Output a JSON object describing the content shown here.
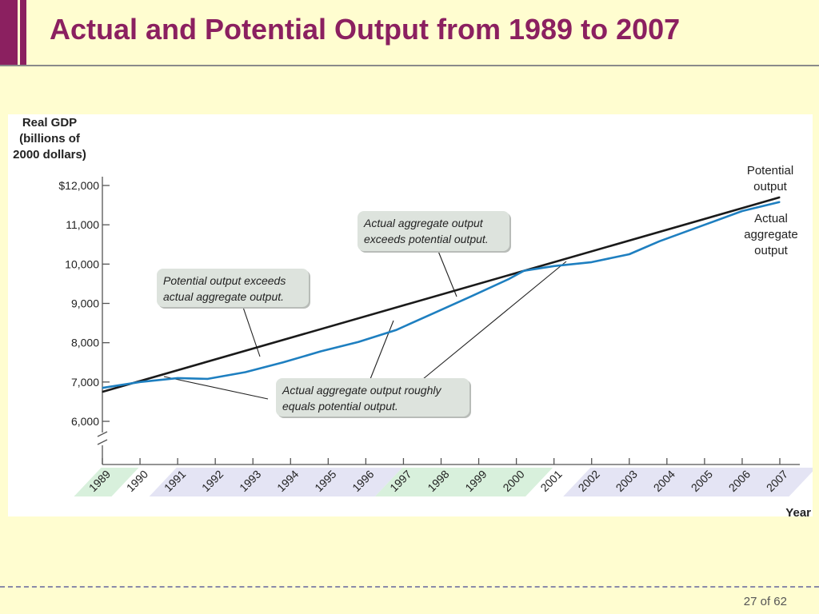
{
  "slide": {
    "title": "Actual and Potential Output from 1989 to 2007",
    "page": "27 of 62"
  },
  "chart_data": {
    "type": "line",
    "title": "",
    "ylabel": [
      "Real GDP",
      "(billions of",
      "2000 dollars)"
    ],
    "xlabel": "Year",
    "ylim": [
      6000,
      12000
    ],
    "y_ticks": [
      "6,000",
      "7,000",
      "8,000",
      "9,000",
      "10,000",
      "11,000",
      "$12,000"
    ],
    "y_tick_values": [
      6000,
      7000,
      8000,
      9000,
      10000,
      11000,
      12000
    ],
    "y_axis_break": true,
    "categories": [
      "1989",
      "1990",
      "1991",
      "1992",
      "1993",
      "1994",
      "1995",
      "1996",
      "1997",
      "1998",
      "1999",
      "2000",
      "2001",
      "2002",
      "2003",
      "2004",
      "2005",
      "2006",
      "2007"
    ],
    "series": [
      {
        "name": "Potential output",
        "color": "#1a1a1a",
        "x": [
          1989,
          2007
        ],
        "values": [
          6750,
          11700
        ]
      },
      {
        "name": "Actual aggregate output",
        "color": "#1e7fc0",
        "x": [
          1989,
          1990,
          1991,
          1991.8,
          1992.8,
          1993.8,
          1994.8,
          1995.8,
          1996.8,
          1997.8,
          1998.8,
          1999.8,
          2000.2,
          2001,
          2002,
          2003,
          2003.8,
          2005,
          2006,
          2007
        ],
        "values": [
          6850,
          7000,
          7100,
          7080,
          7250,
          7500,
          7780,
          8020,
          8320,
          8750,
          9180,
          9620,
          9830,
          9950,
          10050,
          10250,
          10580,
          11000,
          11350,
          11580
        ]
      }
    ],
    "series_labels": {
      "potential": [
        "Potential",
        "output"
      ],
      "actual": [
        "Actual",
        "aggregate",
        "output"
      ]
    },
    "year_bands": [
      {
        "from": "1989",
        "to": "1989",
        "color": "#d8f0dc"
      },
      {
        "from": "1990",
        "to": "1990",
        "color": "#ffffff"
      },
      {
        "from": "1991",
        "to": "1996",
        "color": "#e4e4f4"
      },
      {
        "from": "1997",
        "to": "2000",
        "color": "#d8f0dc"
      },
      {
        "from": "2001",
        "to": "2001",
        "color": "#ffffff"
      },
      {
        "from": "2002",
        "to": "2007",
        "color": "#e4e4f4"
      }
    ],
    "annotations": [
      {
        "id": "potential-exceeds",
        "lines": [
          "Potential output exceeds",
          "actual aggregate output."
        ]
      },
      {
        "id": "actual-exceeds",
        "lines": [
          "Actual aggregate output",
          "exceeds potential output."
        ]
      },
      {
        "id": "roughly-equals",
        "lines": [
          "Actual aggregate output roughly",
          "equals potential output."
        ]
      }
    ]
  }
}
